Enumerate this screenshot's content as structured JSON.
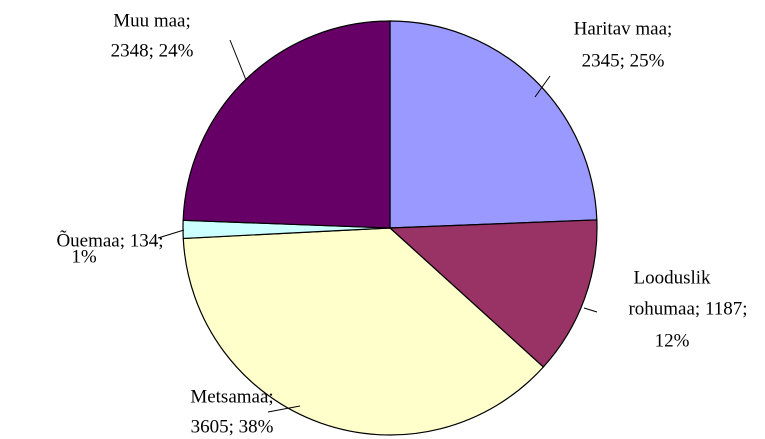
{
  "chart_data": {
    "type": "pie",
    "values": [
      2345,
      1187,
      3605,
      134,
      2348
    ],
    "value_labels": [
      [
        "Haritav maa;",
        "2345; 25%"
      ],
      [
        "Looduslik",
        "rohumaa; 1187;",
        "12%"
      ],
      [
        "Metsamaa;",
        "3605; 38%"
      ],
      [
        "Õuemaa; 134;",
        "1%"
      ],
      [
        "Muu maa;",
        "2348; 24%"
      ]
    ],
    "colors": [
      "#9999ff",
      "#993366",
      "#ffffcc",
      "#ccffff",
      "#660066"
    ]
  }
}
